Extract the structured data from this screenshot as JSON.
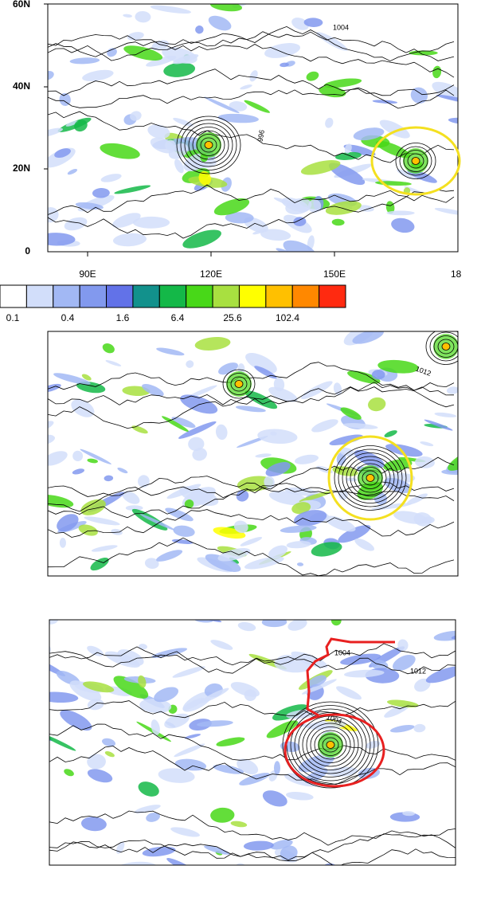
{
  "panels": [
    {
      "lat_labels": [
        "60N",
        "40N",
        "20N",
        "0"
      ],
      "lon_labels": [
        "90E",
        "120E",
        "150E",
        "18"
      ],
      "contour_labels": [
        "1004",
        "996"
      ]
    },
    {
      "contour_labels": [
        "1012"
      ]
    },
    {
      "contour_labels": [
        "1004",
        "1012",
        "1004"
      ]
    }
  ],
  "colorbar": {
    "colors": [
      "#ffffff",
      "#d2defa",
      "#a2b8f4",
      "#8299ee",
      "#6272e8",
      "#12918c",
      "#14b848",
      "#48d818",
      "#a8e040",
      "#ffff00",
      "#ffc000",
      "#ff8800",
      "#ff2a10"
    ],
    "labels": [
      "0.1",
      "0.4",
      "1.6",
      "6.4",
      "25.6",
      "102.4"
    ]
  }
}
